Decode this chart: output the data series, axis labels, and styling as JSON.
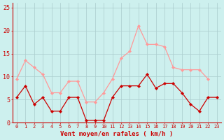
{
  "x_avg": [
    0,
    1,
    2,
    3,
    4,
    5,
    6,
    7,
    8,
    9,
    10,
    11,
    12,
    13,
    14,
    15,
    16,
    17,
    18,
    19,
    20,
    21,
    22,
    23
  ],
  "wind_avg": [
    5.5,
    8.0,
    4.0,
    5.5,
    2.5,
    2.5,
    5.5,
    5.5,
    0.5,
    0.5,
    0.5,
    5.5,
    8.0,
    8.0,
    8.0,
    10.5,
    7.5,
    8.5,
    8.5,
    6.5,
    4.0,
    2.5,
    5.5,
    5.5
  ],
  "x_gust": [
    0,
    1,
    2,
    3,
    4,
    5,
    6,
    7,
    8,
    9,
    10,
    11,
    12,
    13,
    14,
    15,
    16,
    17,
    18,
    19,
    20,
    21,
    22
  ],
  "wind_gust": [
    9.5,
    13.5,
    12.0,
    10.5,
    6.5,
    6.5,
    9.0,
    9.0,
    4.5,
    4.5,
    6.5,
    9.5,
    14.0,
    15.5,
    21.0,
    17.0,
    17.0,
    16.5,
    12.0,
    11.5,
    11.5,
    11.5,
    9.5
  ],
  "avg_color": "#cc0000",
  "gust_color": "#ff9999",
  "bg_color": "#cdf0ee",
  "grid_color": "#aacccc",
  "axis_color": "#cc0000",
  "xlabel": "Vent moyen/en rafales ( km/h )",
  "xlabel_color": "#cc0000",
  "tick_color": "#cc0000",
  "ylim": [
    0,
    26
  ],
  "yticks": [
    0,
    5,
    10,
    15,
    20,
    25
  ],
  "xticks": [
    0,
    1,
    2,
    3,
    4,
    5,
    6,
    7,
    8,
    9,
    10,
    11,
    12,
    13,
    14,
    15,
    16,
    17,
    18,
    19,
    20,
    21,
    22,
    23
  ],
  "xtick_labels": [
    "0",
    "1",
    "2",
    "3",
    "4",
    "5",
    "6",
    "7",
    "8",
    "9",
    "10",
    "11",
    "12",
    "13",
    "14",
    "15",
    "16",
    "17",
    "18",
    "19",
    "20",
    "21",
    "22",
    "23"
  ]
}
